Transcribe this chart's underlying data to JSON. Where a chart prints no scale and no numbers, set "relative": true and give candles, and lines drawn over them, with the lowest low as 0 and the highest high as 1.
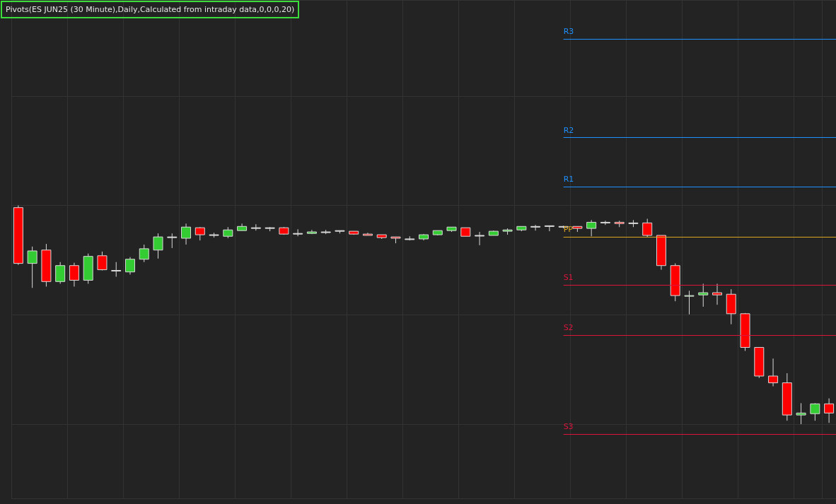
{
  "chart_data": {
    "type": "candlestick",
    "title": "Pivots(ES JUN25 (30 Minute),Daily,Calculated from intraday data,0,0,0,20)",
    "relative": true,
    "grid": true,
    "categories": [
      null,
      null,
      null,
      null,
      null,
      null,
      null,
      null,
      null,
      null,
      null,
      null,
      null,
      null,
      null,
      null,
      null,
      null,
      null,
      null,
      null,
      null,
      null,
      null,
      null,
      null,
      null,
      null,
      null,
      null,
      null,
      null,
      null,
      null,
      null,
      null,
      null,
      null,
      null,
      null,
      null,
      null,
      null,
      null,
      null,
      null,
      null,
      null,
      null,
      null,
      null,
      null,
      null,
      null,
      null,
      null,
      null,
      null,
      null
    ],
    "ohlc": [
      [
        0.99,
        1.0,
        0.728,
        0.735
      ],
      [
        0.735,
        0.812,
        0.623,
        0.792
      ],
      [
        0.796,
        0.824,
        0.629,
        0.652
      ],
      [
        0.652,
        0.741,
        0.642,
        0.725
      ],
      [
        0.725,
        0.738,
        0.629,
        0.658
      ],
      [
        0.658,
        0.78,
        0.642,
        0.767
      ],
      [
        0.77,
        0.789,
        0.703,
        0.706
      ],
      [
        0.703,
        0.741,
        0.674,
        0.703
      ],
      [
        0.696,
        0.764,
        0.684,
        0.754
      ],
      [
        0.754,
        0.821,
        0.741,
        0.802
      ],
      [
        0.796,
        0.872,
        0.757,
        0.856
      ],
      [
        0.856,
        0.872,
        0.805,
        0.856
      ],
      [
        0.85,
        0.917,
        0.821,
        0.901
      ],
      [
        0.898,
        0.901,
        0.84,
        0.866
      ],
      [
        0.866,
        0.875,
        0.853,
        0.866
      ],
      [
        0.859,
        0.901,
        0.85,
        0.888
      ],
      [
        0.885,
        0.917,
        0.885,
        0.904
      ],
      [
        0.898,
        0.914,
        0.885,
        0.898
      ],
      [
        0.898,
        0.901,
        0.882,
        0.898
      ],
      [
        0.898,
        0.901,
        0.866,
        0.869
      ],
      [
        0.872,
        0.891,
        0.859,
        0.872
      ],
      [
        0.872,
        0.888,
        0.869,
        0.879
      ],
      [
        0.879,
        0.888,
        0.869,
        0.879
      ],
      [
        0.885,
        0.885,
        0.872,
        0.885
      ],
      [
        0.882,
        0.882,
        0.866,
        0.869
      ],
      [
        0.869,
        0.875,
        0.863,
        0.863
      ],
      [
        0.866,
        0.866,
        0.847,
        0.853
      ],
      [
        0.856,
        0.856,
        0.827,
        0.85
      ],
      [
        0.847,
        0.859,
        0.84,
        0.847
      ],
      [
        0.847,
        0.869,
        0.84,
        0.866
      ],
      [
        0.866,
        0.885,
        0.863,
        0.885
      ],
      [
        0.885,
        0.901,
        0.879,
        0.901
      ],
      [
        0.898,
        0.898,
        0.859,
        0.859
      ],
      [
        0.863,
        0.879,
        0.818,
        0.863
      ],
      [
        0.863,
        0.885,
        0.863,
        0.882
      ],
      [
        0.882,
        0.895,
        0.866,
        0.888
      ],
      [
        0.888,
        0.904,
        0.882,
        0.904
      ],
      [
        0.904,
        0.911,
        0.885,
        0.904
      ],
      [
        0.907,
        0.907,
        0.882,
        0.907
      ],
      [
        0.904,
        0.907,
        0.895,
        0.904
      ],
      [
        0.904,
        0.904,
        0.879,
        0.895
      ],
      [
        0.895,
        0.933,
        0.859,
        0.923
      ],
      [
        0.923,
        0.93,
        0.911,
        0.923
      ],
      [
        0.923,
        0.93,
        0.901,
        0.917
      ],
      [
        0.92,
        0.933,
        0.901,
        0.92
      ],
      [
        0.92,
        0.939,
        0.856,
        0.863
      ],
      [
        0.863,
        0.863,
        0.706,
        0.725
      ],
      [
        0.725,
        0.735,
        0.562,
        0.588
      ],
      [
        0.585,
        0.61,
        0.502,
        0.588
      ],
      [
        0.591,
        0.642,
        0.537,
        0.601
      ],
      [
        0.601,
        0.642,
        0.546,
        0.591
      ],
      [
        0.594,
        0.617,
        0.457,
        0.505
      ],
      [
        0.505,
        0.508,
        0.335,
        0.351
      ],
      [
        0.351,
        0.351,
        0.211,
        0.22
      ],
      [
        0.22,
        0.3,
        0.173,
        0.189
      ],
      [
        0.189,
        0.233,
        0.016,
        0.042
      ],
      [
        0.042,
        0.096,
        0,
        0.051
      ],
      [
        0.048,
        0.096,
        0.016,
        0.093
      ],
      [
        0.093,
        0.118,
        0.006,
        0.051
      ]
    ],
    "colors": [
      "#ff0000",
      "#33cc33",
      "#ff0000",
      "#33cc33",
      "#ff0000",
      "#33cc33",
      "#ff0000",
      "#d9d9d9",
      "#33cc33",
      "#33cc33",
      "#33cc33",
      "#d9d9d9",
      "#33cc33",
      "#ff0000",
      "#d9d9d9",
      "#33cc33",
      "#33cc33",
      "#d9d9d9",
      "#d9d9d9",
      "#ff0000",
      "#d9d9d9",
      "#33cc33",
      "#d9d9d9",
      "#d9d9d9",
      "#ff0000",
      "#ff0000",
      "#ff0000",
      "#ff0000",
      "#d9d9d9",
      "#33cc33",
      "#33cc33",
      "#33cc33",
      "#ff0000",
      "#d9d9d9",
      "#33cc33",
      "#33cc33",
      "#33cc33",
      "#d9d9d9",
      "#d9d9d9",
      "#d9d9d9",
      "#ff0000",
      "#33cc33",
      "#d9d9d9",
      "#ff0000",
      "#d9d9d9",
      "#ff0000",
      "#ff0000",
      "#ff0000",
      "#33cc33",
      "#33cc33",
      "#ff0000",
      "#ff0000",
      "#ff0000",
      "#ff0000",
      "#ff0000",
      "#ff0000",
      "#33cc33",
      "#33cc33",
      "#ff0000"
    ],
    "ref_lines": [
      {
        "axis": "y",
        "value": 1.76,
        "label": "R3",
        "color": "#1e90ff"
      },
      {
        "axis": "y",
        "value": 1.31,
        "label": "R2",
        "color": "#1e90ff"
      },
      {
        "axis": "y",
        "value": 1.086,
        "label": "R1",
        "color": "#1e90ff"
      },
      {
        "axis": "y",
        "value": 0.856,
        "label": "PP",
        "color": "#daa520"
      },
      {
        "axis": "y",
        "value": 0.636,
        "label": "S1",
        "color": "#dc143c"
      },
      {
        "axis": "y",
        "value": 0.406,
        "label": "S2",
        "color": "#dc143c"
      },
      {
        "axis": "y",
        "value": -0.045,
        "label": "S3",
        "color": "#dc143c"
      }
    ]
  }
}
